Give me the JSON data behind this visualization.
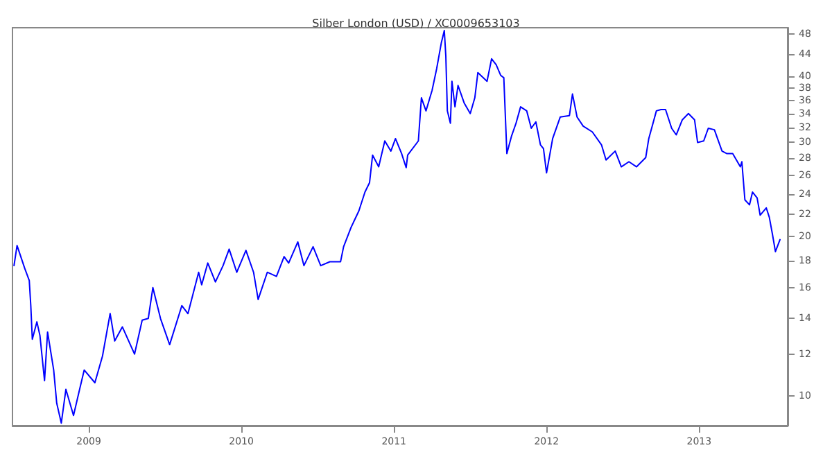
{
  "chart_data": {
    "type": "line",
    "title": "Silber London (USD) / XC0009653103",
    "x": [
      2008.51,
      2008.53,
      2008.58,
      2008.61,
      2008.62,
      2008.63,
      2008.66,
      2008.68,
      2008.71,
      2008.73,
      2008.77,
      2008.79,
      2008.82,
      2008.85,
      2008.9,
      2008.94,
      2008.97,
      2009.04,
      2009.09,
      2009.14,
      2009.17,
      2009.22,
      2009.3,
      2009.35,
      2009.39,
      2009.42,
      2009.47,
      2009.53,
      2009.61,
      2009.65,
      2009.72,
      2009.74,
      2009.78,
      2009.83,
      2009.88,
      2009.92,
      2009.97,
      2010.03,
      2010.08,
      2010.11,
      2010.17,
      2010.23,
      2010.28,
      2010.31,
      2010.37,
      2010.41,
      2010.47,
      2010.52,
      2010.58,
      2010.65,
      2010.67,
      2010.72,
      2010.77,
      2010.81,
      2010.84,
      2010.86,
      2010.9,
      2010.94,
      2010.98,
      2011.01,
      2011.05,
      2011.08,
      2011.09,
      2011.16,
      2011.18,
      2011.21,
      2011.25,
      2011.28,
      2011.31,
      2011.33,
      2011.34,
      2011.35,
      2011.37,
      2011.38,
      2011.4,
      2011.42,
      2011.46,
      2011.5,
      2011.53,
      2011.55,
      2011.61,
      2011.64,
      2011.67,
      2011.7,
      2011.72,
      2011.74,
      2011.77,
      2011.8,
      2011.83,
      2011.87,
      2011.9,
      2011.93,
      2011.96,
      2011.98,
      2012.0,
      2012.04,
      2012.09,
      2012.15,
      2012.17,
      2012.2,
      2012.24,
      2012.3,
      2012.36,
      2012.39,
      2012.45,
      2012.49,
      2012.54,
      2012.59,
      2012.65,
      2012.67,
      2012.72,
      2012.75,
      2012.78,
      2012.82,
      2012.85,
      2012.89,
      2012.93,
      2012.97,
      2012.99,
      2013.03,
      2013.06,
      2013.1,
      2013.15,
      2013.18,
      2013.22,
      2013.27,
      2013.28,
      2013.3,
      2013.33,
      2013.35,
      2013.38,
      2013.4,
      2013.44,
      2013.46,
      2013.48,
      2013.5,
      2013.53
    ],
    "series": [
      {
        "color": "#0000ff",
        "values": [
          17.6,
          19.2,
          17.4,
          16.5,
          14.8,
          12.8,
          13.8,
          13.0,
          10.7,
          13.2,
          11.2,
          9.7,
          8.9,
          10.3,
          9.2,
          10.3,
          11.2,
          10.6,
          11.9,
          14.3,
          12.7,
          13.5,
          12.0,
          13.9,
          14.0,
          16.0,
          14.0,
          12.5,
          14.8,
          14.3,
          17.1,
          16.2,
          17.8,
          16.4,
          17.6,
          18.9,
          17.1,
          18.8,
          17.1,
          15.2,
          17.1,
          16.8,
          18.3,
          17.8,
          19.5,
          17.6,
          19.1,
          17.6,
          17.9,
          17.9,
          19.1,
          20.8,
          22.3,
          24.2,
          25.2,
          28.4,
          27.0,
          30.2,
          28.9,
          30.5,
          28.6,
          26.9,
          28.4,
          30.2,
          36.4,
          34.4,
          37.6,
          41.3,
          46.1,
          48.7,
          43.6,
          34.4,
          32.6,
          39.1,
          35.0,
          38.4,
          35.6,
          34.0,
          36.4,
          40.6,
          39.1,
          43.1,
          42.0,
          40.1,
          39.7,
          28.6,
          30.8,
          32.6,
          35.0,
          34.4,
          31.9,
          32.8,
          29.7,
          29.2,
          26.3,
          30.5,
          33.5,
          33.7,
          37.0,
          33.5,
          32.2,
          31.4,
          29.7,
          27.8,
          28.9,
          27.0,
          27.6,
          27.0,
          28.1,
          30.5,
          34.4,
          34.6,
          34.6,
          31.9,
          31.0,
          33.1,
          34.0,
          33.1,
          30.0,
          30.2,
          31.9,
          31.7,
          28.9,
          28.6,
          28.6,
          27.0,
          27.6,
          23.4,
          22.9,
          24.2,
          23.6,
          21.9,
          22.6,
          21.7,
          20.2,
          18.7,
          19.7
        ]
      }
    ],
    "xlim": [
      2008.5,
      2013.58
    ],
    "xticks": [
      2009,
      2010,
      2011,
      2012,
      2013
    ],
    "ylim": [
      8.8,
      49.3
    ],
    "yticks": [
      10,
      12,
      14,
      16,
      18,
      20,
      22,
      24,
      26,
      28,
      30,
      32,
      34,
      36,
      38,
      40,
      44,
      48
    ],
    "log": "y",
    "grid": false,
    "marker": "none",
    "line_style": "solid"
  }
}
